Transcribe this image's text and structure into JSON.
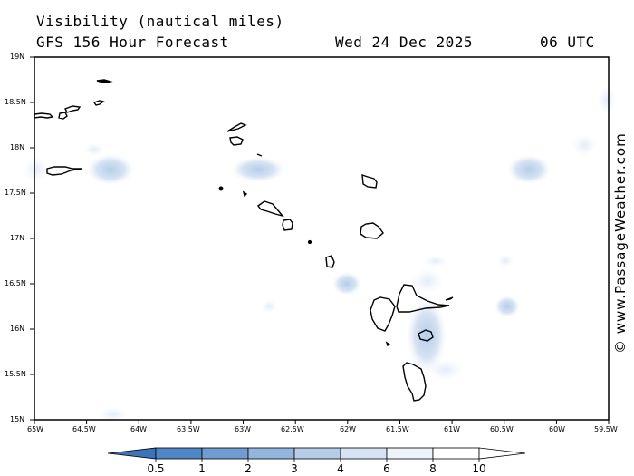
{
  "header": {
    "title": "Visibility (nautical miles)",
    "subtitle": "GFS 156 Hour Forecast",
    "date": "Wed 24 Dec 2025",
    "time": "06 UTC"
  },
  "credit": "© www.PassageWeather.com",
  "map": {
    "lat_labels": [
      "19N",
      "18.5N",
      "18N",
      "17.5N",
      "17N",
      "16.5N",
      "16N",
      "15.5N",
      "15N"
    ],
    "lon_labels": [
      "65W",
      "64.5W",
      "64W",
      "63.5W",
      "63W",
      "62.5W",
      "62W",
      "61.5W",
      "61W",
      "60.5W",
      "60W",
      "59.5W"
    ],
    "lat_range": [
      15,
      19
    ],
    "lon_range": [
      -65,
      -59.5
    ]
  },
  "legend": {
    "values": [
      "0.5",
      "1",
      "2",
      "3",
      "4",
      "6",
      "8",
      "10"
    ],
    "colors": [
      "#3b74b8",
      "#4f86c6",
      "#6f9dd2",
      "#93b6de",
      "#b5cde9",
      "#d6e3f3",
      "#eef3fa",
      "#ffffff"
    ]
  }
}
